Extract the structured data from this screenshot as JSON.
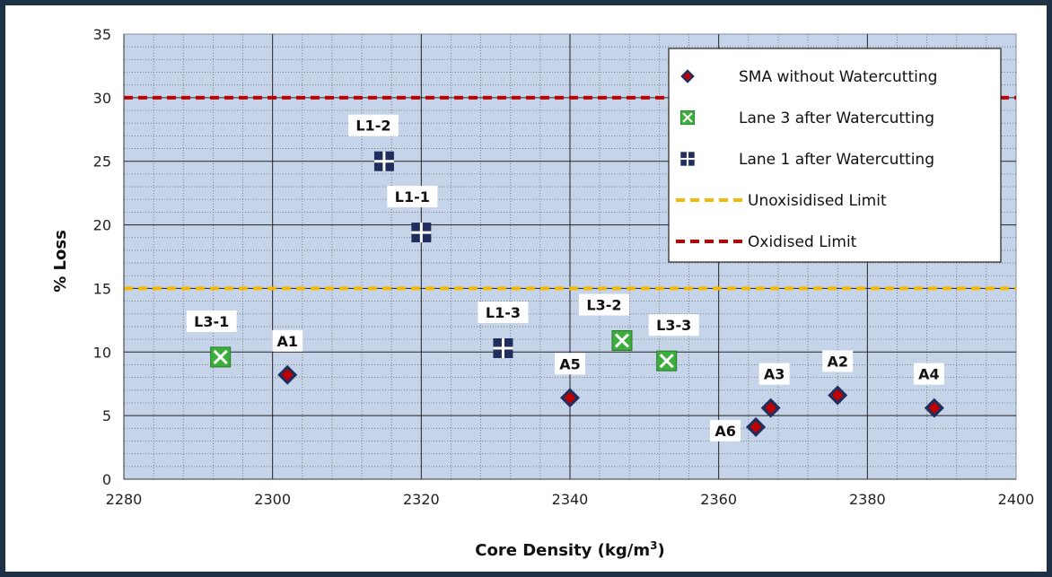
{
  "chart_data": {
    "type": "scatter",
    "xlabel": "Core Density (kg/m",
    "xlabel_sup": "3",
    "xlabel_end": ")",
    "ylabel": "% Loss",
    "xlim": [
      2280,
      2400
    ],
    "ylim": [
      0,
      35
    ],
    "xticks": [
      2280,
      2300,
      2320,
      2340,
      2360,
      2380,
      2400
    ],
    "yticks": [
      0,
      5,
      10,
      15,
      20,
      25,
      30,
      35
    ],
    "grid": true,
    "plot_background": "#c6d4ea",
    "legend_position": "top-right",
    "series": [
      {
        "name": "SMA without Watercutting",
        "marker": "diamond",
        "color": "#c00000",
        "edge_color": "#1f2e5c",
        "points": [
          {
            "label": "A1",
            "x": 2302,
            "y": 8.2
          },
          {
            "label": "A2",
            "x": 2376,
            "y": 6.6
          },
          {
            "label": "A3",
            "x": 2367,
            "y": 5.6
          },
          {
            "label": "A4",
            "x": 2389,
            "y": 5.6
          },
          {
            "label": "A5",
            "x": 2340,
            "y": 6.4
          },
          {
            "label": "A6",
            "x": 2365,
            "y": 4.1
          }
        ]
      },
      {
        "name": "Lane 3 after Watercutting",
        "marker": "square-x",
        "color": "#3cae3c",
        "edge_color": "#ffffff",
        "points": [
          {
            "label": "L3-1",
            "x": 2293,
            "y": 9.6
          },
          {
            "label": "L3-2",
            "x": 2347,
            "y": 10.9
          },
          {
            "label": "L3-3",
            "x": 2353,
            "y": 9.3
          }
        ]
      },
      {
        "name": "Lane 1 after Watercutting",
        "marker": "square-plus",
        "color": "#1f2e5c",
        "edge_color": "#ffffff",
        "points": [
          {
            "label": "L1-1",
            "x": 2320,
            "y": 19.4
          },
          {
            "label": "L1-2",
            "x": 2315,
            "y": 25
          },
          {
            "label": "L1-3",
            "x": 2331,
            "y": 10.3
          }
        ]
      }
    ],
    "reference_lines": [
      {
        "name": "Unoxisidised Limit",
        "y": 15,
        "color": "#f5b800"
      },
      {
        "name": "Oxidised Limit",
        "y": 30,
        "color": "#c00000"
      }
    ]
  }
}
